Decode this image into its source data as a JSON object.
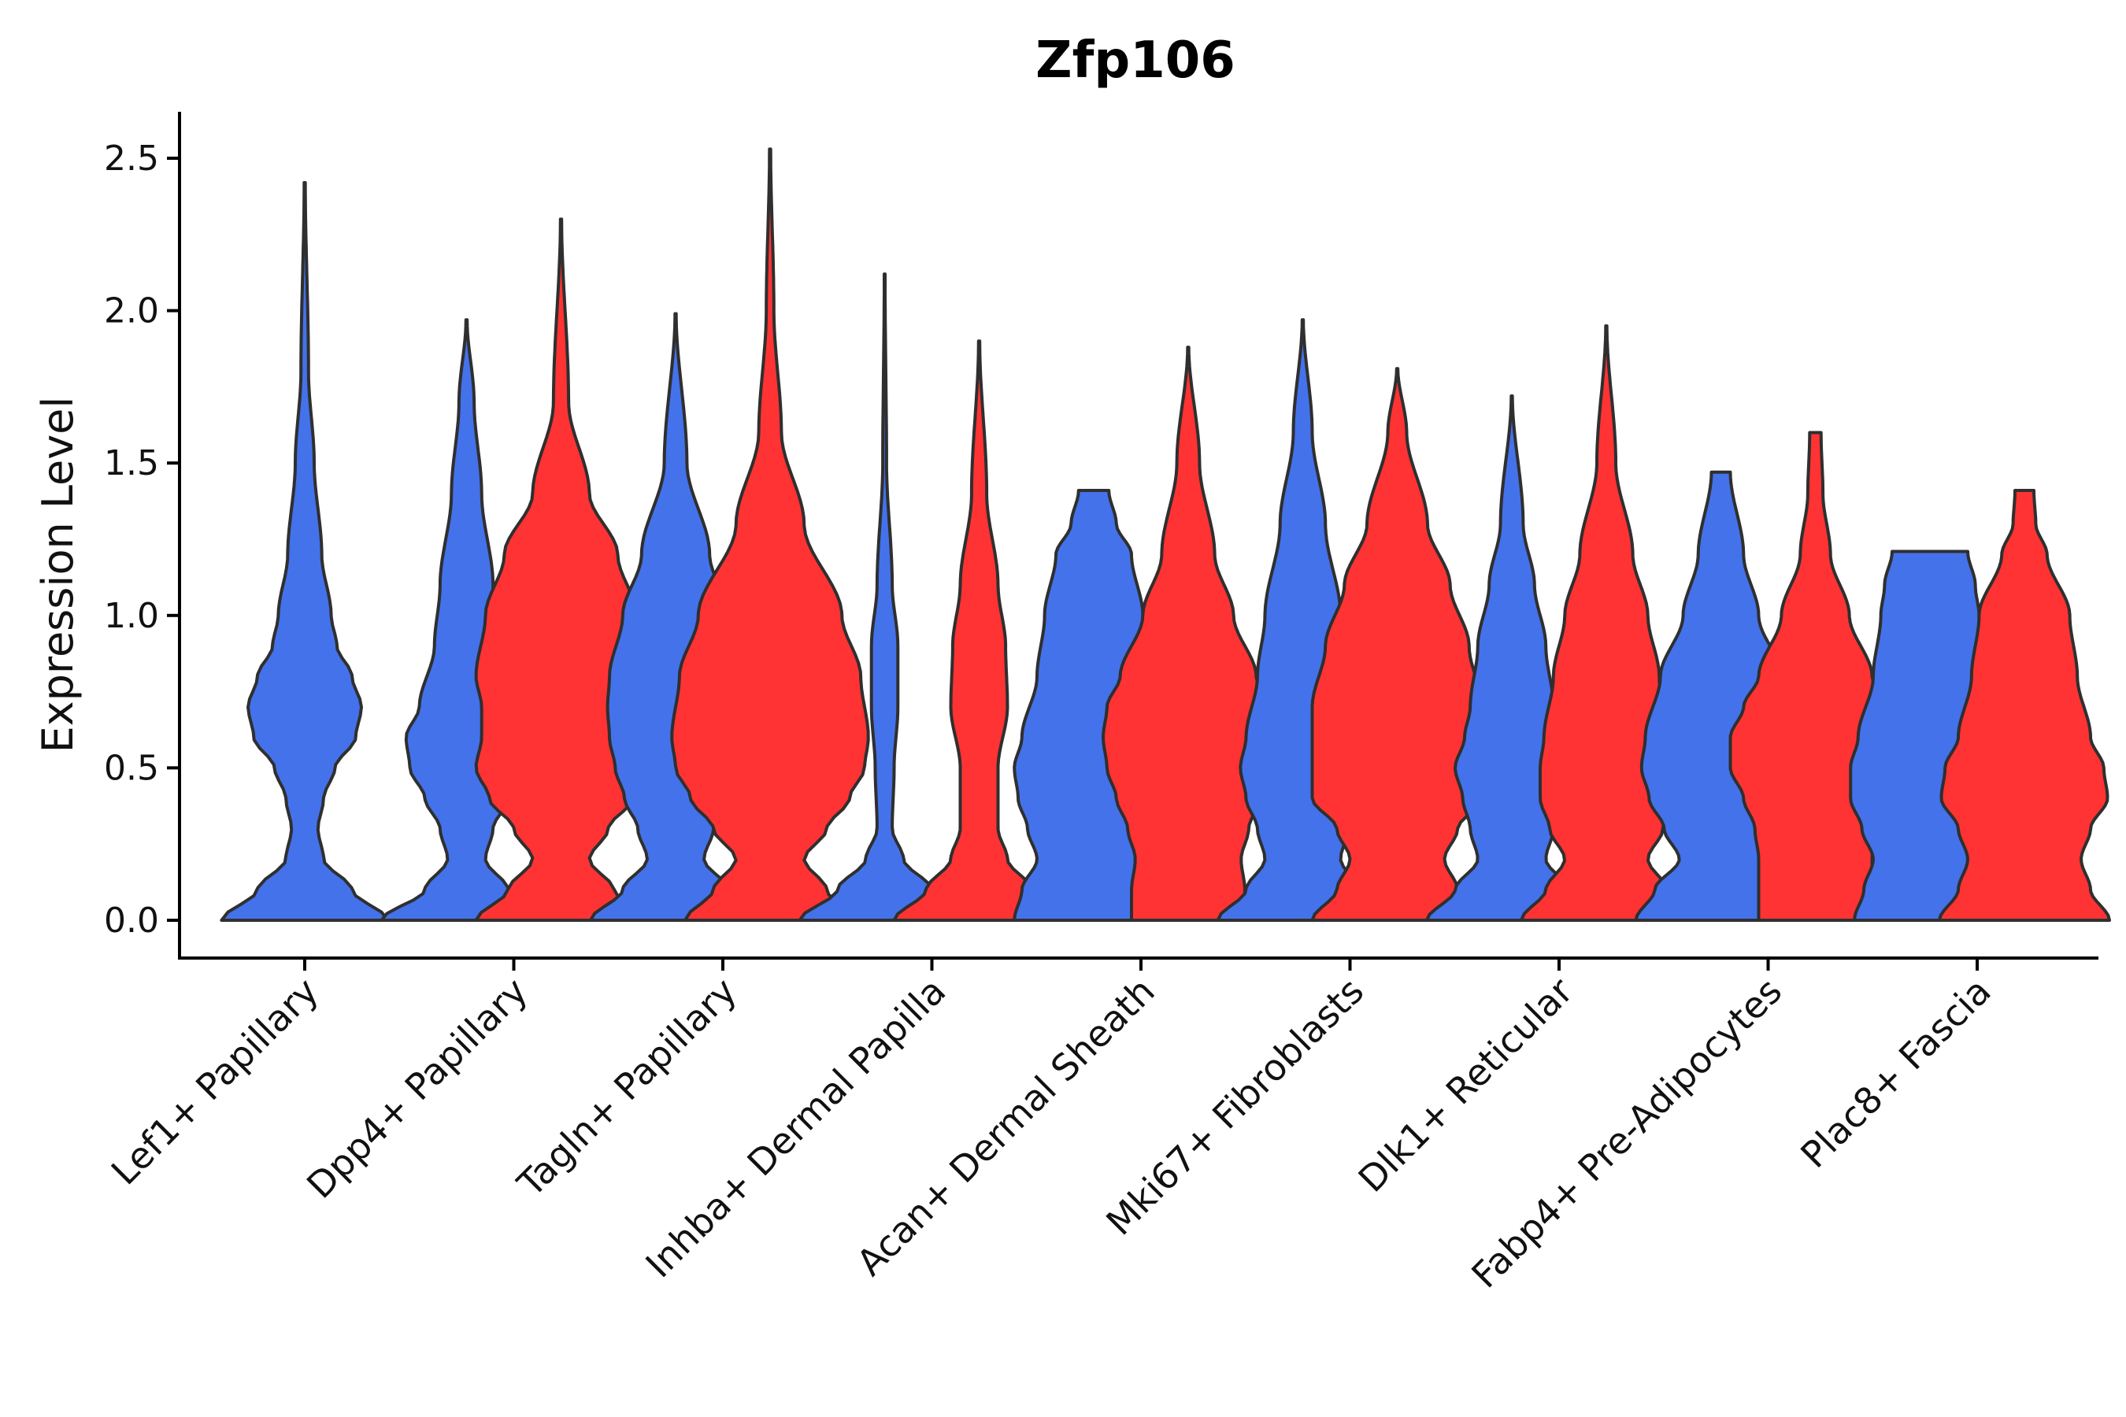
{
  "chart_data": {
    "type": "violin",
    "title": "Zfp106",
    "ylabel": "Expression Level",
    "xlabel": "",
    "ylim": [
      -0.12,
      2.65
    ],
    "yticks": [
      0.0,
      0.5,
      1.0,
      1.5,
      2.0,
      2.5
    ],
    "ytick_labels": [
      "0.0",
      "0.5",
      "1.0",
      "1.5",
      "2.0",
      "2.5"
    ],
    "group_colors": {
      "blue": "#4472EA",
      "red": "#FF3333"
    },
    "categories": [
      "Lef1+ Papillary",
      "Dpp4+ Papillary",
      "Tagln+ Papillary",
      "Inhba+ Dermal Papilla",
      "Acan+ Dermal Sheath",
      "Mki67+ Fibroblasts",
      "Dlk1+ Reticular",
      "Fabp4+ Pre-Adipocytes",
      "Plac8+ Fascia"
    ],
    "violins": [
      {
        "category": "Lef1+ Papillary",
        "group": "blue",
        "max": 2.42,
        "profile": [
          [
            0,
            0.44
          ],
          [
            0.1,
            0.25
          ],
          [
            0.2,
            0.1
          ],
          [
            0.3,
            0.07
          ],
          [
            0.4,
            0.1
          ],
          [
            0.5,
            0.16
          ],
          [
            0.6,
            0.27
          ],
          [
            0.7,
            0.3
          ],
          [
            0.8,
            0.25
          ],
          [
            0.9,
            0.17
          ],
          [
            1.0,
            0.14
          ],
          [
            1.2,
            0.09
          ],
          [
            1.5,
            0.05
          ],
          [
            1.8,
            0.02
          ],
          [
            2.42,
            0.003
          ]
        ]
      },
      {
        "category": "Dpp4+ Papillary",
        "group": "blue",
        "max": 1.97,
        "profile": [
          [
            0,
            0.45
          ],
          [
            0.1,
            0.22
          ],
          [
            0.2,
            0.1
          ],
          [
            0.3,
            0.14
          ],
          [
            0.4,
            0.22
          ],
          [
            0.5,
            0.3
          ],
          [
            0.6,
            0.32
          ],
          [
            0.7,
            0.25
          ],
          [
            0.9,
            0.17
          ],
          [
            1.1,
            0.14
          ],
          [
            1.4,
            0.08
          ],
          [
            1.7,
            0.04
          ],
          [
            1.97,
            0.003
          ]
        ]
      },
      {
        "category": "Dpp4+ Papillary",
        "group": "red",
        "max": 2.3,
        "profile": [
          [
            0,
            0.45
          ],
          [
            0.1,
            0.28
          ],
          [
            0.2,
            0.15
          ],
          [
            0.3,
            0.25
          ],
          [
            0.4,
            0.38
          ],
          [
            0.5,
            0.45
          ],
          [
            0.6,
            0.42
          ],
          [
            0.7,
            0.42
          ],
          [
            0.8,
            0.45
          ],
          [
            1.0,
            0.4
          ],
          [
            1.2,
            0.3
          ],
          [
            1.4,
            0.15
          ],
          [
            1.7,
            0.04
          ],
          [
            2.3,
            0.003
          ]
        ]
      },
      {
        "category": "Tagln+ Papillary",
        "group": "blue",
        "max": 1.99,
        "profile": [
          [
            0,
            0.45
          ],
          [
            0.1,
            0.28
          ],
          [
            0.2,
            0.15
          ],
          [
            0.3,
            0.2
          ],
          [
            0.4,
            0.27
          ],
          [
            0.5,
            0.32
          ],
          [
            0.6,
            0.35
          ],
          [
            0.7,
            0.36
          ],
          [
            0.8,
            0.35
          ],
          [
            1.0,
            0.28
          ],
          [
            1.2,
            0.18
          ],
          [
            1.5,
            0.06
          ],
          [
            1.99,
            0.003
          ]
        ]
      },
      {
        "category": "Tagln+ Papillary",
        "group": "red",
        "max": 2.53,
        "profile": [
          [
            0,
            0.45
          ],
          [
            0.1,
            0.3
          ],
          [
            0.2,
            0.18
          ],
          [
            0.3,
            0.3
          ],
          [
            0.4,
            0.42
          ],
          [
            0.5,
            0.5
          ],
          [
            0.6,
            0.52
          ],
          [
            0.8,
            0.48
          ],
          [
            1.0,
            0.38
          ],
          [
            1.3,
            0.18
          ],
          [
            1.6,
            0.06
          ],
          [
            2.0,
            0.02
          ],
          [
            2.53,
            0.003
          ]
        ]
      },
      {
        "category": "Inhba+ Dermal Papilla",
        "group": "blue",
        "max": 2.12,
        "profile": [
          [
            0,
            0.45
          ],
          [
            0.1,
            0.25
          ],
          [
            0.2,
            0.1
          ],
          [
            0.3,
            0.04
          ],
          [
            0.5,
            0.05
          ],
          [
            0.7,
            0.07
          ],
          [
            0.9,
            0.07
          ],
          [
            1.1,
            0.04
          ],
          [
            1.5,
            0.01
          ],
          [
            2.12,
            0.002
          ]
        ]
      },
      {
        "category": "Inhba+ Dermal Papilla",
        "group": "red",
        "max": 1.9,
        "profile": [
          [
            0,
            0.45
          ],
          [
            0.1,
            0.28
          ],
          [
            0.2,
            0.15
          ],
          [
            0.3,
            0.1
          ],
          [
            0.5,
            0.1
          ],
          [
            0.7,
            0.15
          ],
          [
            0.9,
            0.14
          ],
          [
            1.1,
            0.1
          ],
          [
            1.4,
            0.04
          ],
          [
            1.9,
            0.003
          ]
        ]
      },
      {
        "category": "Acan+ Dermal Sheath",
        "group": "blue",
        "max": 1.41,
        "profile": [
          [
            0,
            0.42
          ],
          [
            0.1,
            0.38
          ],
          [
            0.2,
            0.3
          ],
          [
            0.3,
            0.35
          ],
          [
            0.4,
            0.4
          ],
          [
            0.5,
            0.42
          ],
          [
            0.6,
            0.38
          ],
          [
            0.8,
            0.3
          ],
          [
            1.0,
            0.26
          ],
          [
            1.2,
            0.2
          ],
          [
            1.3,
            0.12
          ],
          [
            1.41,
            0.08
          ]
        ]
      },
      {
        "category": "Acan+ Dermal Sheath",
        "group": "red",
        "max": 1.88,
        "profile": [
          [
            0,
            0.3
          ],
          [
            0.1,
            0.3
          ],
          [
            0.2,
            0.28
          ],
          [
            0.3,
            0.32
          ],
          [
            0.4,
            0.38
          ],
          [
            0.5,
            0.43
          ],
          [
            0.6,
            0.45
          ],
          [
            0.7,
            0.43
          ],
          [
            0.8,
            0.36
          ],
          [
            1.0,
            0.24
          ],
          [
            1.2,
            0.14
          ],
          [
            1.5,
            0.06
          ],
          [
            1.88,
            0.003
          ]
        ]
      },
      {
        "category": "Mki67+ Fibroblasts",
        "group": "blue",
        "max": 1.97,
        "profile": [
          [
            0,
            0.45
          ],
          [
            0.1,
            0.3
          ],
          [
            0.2,
            0.2
          ],
          [
            0.3,
            0.24
          ],
          [
            0.4,
            0.3
          ],
          [
            0.5,
            0.33
          ],
          [
            0.6,
            0.3
          ],
          [
            0.8,
            0.24
          ],
          [
            1.0,
            0.2
          ],
          [
            1.3,
            0.12
          ],
          [
            1.6,
            0.05
          ],
          [
            1.97,
            0.003
          ]
        ]
      },
      {
        "category": "Mki67+ Fibroblasts",
        "group": "red",
        "max": 1.81,
        "profile": [
          [
            0,
            0.45
          ],
          [
            0.1,
            0.32
          ],
          [
            0.2,
            0.25
          ],
          [
            0.3,
            0.32
          ],
          [
            0.4,
            0.45
          ],
          [
            0.5,
            0.45
          ],
          [
            0.7,
            0.45
          ],
          [
            0.9,
            0.38
          ],
          [
            1.1,
            0.28
          ],
          [
            1.3,
            0.16
          ],
          [
            1.6,
            0.05
          ],
          [
            1.81,
            0.003
          ]
        ]
      },
      {
        "category": "Dlk1+ Reticular",
        "group": "blue",
        "max": 1.72,
        "profile": [
          [
            0,
            0.45
          ],
          [
            0.1,
            0.3
          ],
          [
            0.2,
            0.18
          ],
          [
            0.3,
            0.22
          ],
          [
            0.4,
            0.26
          ],
          [
            0.5,
            0.3
          ],
          [
            0.6,
            0.25
          ],
          [
            0.7,
            0.22
          ],
          [
            0.9,
            0.18
          ],
          [
            1.1,
            0.12
          ],
          [
            1.3,
            0.06
          ],
          [
            1.72,
            0.003
          ]
        ]
      },
      {
        "category": "Dlk1+ Reticular",
        "group": "red",
        "max": 1.95,
        "profile": [
          [
            0,
            0.45
          ],
          [
            0.1,
            0.32
          ],
          [
            0.2,
            0.22
          ],
          [
            0.3,
            0.3
          ],
          [
            0.4,
            0.35
          ],
          [
            0.5,
            0.35
          ],
          [
            0.6,
            0.33
          ],
          [
            0.8,
            0.28
          ],
          [
            1.0,
            0.22
          ],
          [
            1.2,
            0.14
          ],
          [
            1.5,
            0.05
          ],
          [
            1.95,
            0.003
          ]
        ]
      },
      {
        "category": "Fabp4+ Pre-Adipocytes",
        "group": "blue",
        "max": 1.47,
        "profile": [
          [
            0,
            0.45
          ],
          [
            0.1,
            0.35
          ],
          [
            0.2,
            0.22
          ],
          [
            0.3,
            0.3
          ],
          [
            0.4,
            0.38
          ],
          [
            0.5,
            0.42
          ],
          [
            0.6,
            0.4
          ],
          [
            0.8,
            0.32
          ],
          [
            1.0,
            0.2
          ],
          [
            1.2,
            0.12
          ],
          [
            1.47,
            0.05
          ]
        ]
      },
      {
        "category": "Fabp4+ Pre-Adipocytes",
        "group": "red",
        "max": 1.6,
        "profile": [
          [
            0,
            0.3
          ],
          [
            0.1,
            0.3
          ],
          [
            0.2,
            0.3
          ],
          [
            0.3,
            0.32
          ],
          [
            0.4,
            0.38
          ],
          [
            0.5,
            0.45
          ],
          [
            0.6,
            0.45
          ],
          [
            0.7,
            0.38
          ],
          [
            0.8,
            0.3
          ],
          [
            1.0,
            0.18
          ],
          [
            1.2,
            0.08
          ],
          [
            1.4,
            0.04
          ],
          [
            1.6,
            0.03
          ]
        ]
      },
      {
        "category": "Plac8+ Fascia",
        "group": "blue",
        "max": 1.21,
        "profile": [
          [
            0,
            0.4
          ],
          [
            0.1,
            0.35
          ],
          [
            0.2,
            0.3
          ],
          [
            0.3,
            0.36
          ],
          [
            0.4,
            0.42
          ],
          [
            0.5,
            0.42
          ],
          [
            0.6,
            0.38
          ],
          [
            0.8,
            0.3
          ],
          [
            1.0,
            0.26
          ],
          [
            1.1,
            0.24
          ],
          [
            1.21,
            0.2
          ]
        ]
      },
      {
        "category": "Plac8+ Fascia",
        "group": "red",
        "max": 1.41,
        "profile": [
          [
            0,
            0.45
          ],
          [
            0.1,
            0.35
          ],
          [
            0.2,
            0.3
          ],
          [
            0.3,
            0.35
          ],
          [
            0.4,
            0.44
          ],
          [
            0.5,
            0.42
          ],
          [
            0.6,
            0.35
          ],
          [
            0.8,
            0.28
          ],
          [
            1.0,
            0.24
          ],
          [
            1.2,
            0.12
          ],
          [
            1.3,
            0.06
          ],
          [
            1.41,
            0.05
          ]
        ]
      }
    ]
  }
}
